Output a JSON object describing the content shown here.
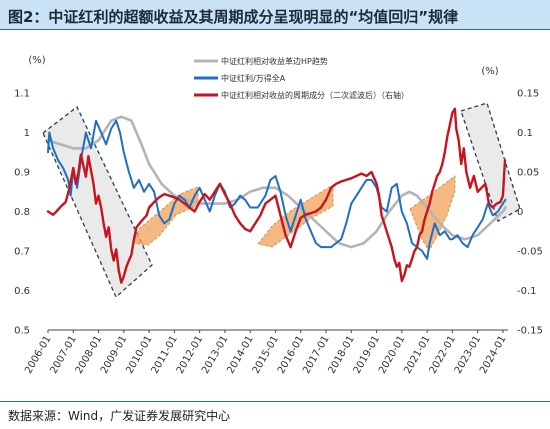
{
  "title": "图2：中证红利的超额收益及其周期成分呈现明显的“均值回归”规律",
  "source": "数据来源：Wind，广发证券发展研究中心",
  "chart_data": {
    "type": "line",
    "left_axis": {
      "unit": "(%)",
      "ylim": [
        0.5,
        1.1
      ],
      "ticks": [
        "1.1",
        "1",
        "0.9",
        "0.8",
        "0.7",
        "0.6",
        "0.5"
      ]
    },
    "right_axis": {
      "unit": "(%)",
      "ylim": [
        -0.15,
        0.15
      ],
      "ticks": [
        "0.15",
        "0.1",
        "0.05",
        "0",
        "-0.05",
        "-0.1",
        "-0.15"
      ]
    },
    "x_ticks": [
      "2006-01",
      "2007-01",
      "2008-01",
      "2009-01",
      "2010-01",
      "2011-01",
      "2012-01",
      "2013-01",
      "2014-01",
      "2015-01",
      "2016-01",
      "2017-01",
      "2018-01",
      "2019-01",
      "2020-01",
      "2021-01",
      "2022-01",
      "2023-01",
      "2024-01"
    ],
    "xlim": [
      2006.0,
      2024.2
    ],
    "legend_position": "top",
    "series": [
      {
        "name": "中证红利相对收益革边HP趋势",
        "axis": "left",
        "color": "#b4b4b4",
        "points": [
          [
            2006.0,
            0.98
          ],
          [
            2006.5,
            0.97
          ],
          [
            2007.0,
            0.96
          ],
          [
            2007.5,
            0.96
          ],
          [
            2008.0,
            0.98
          ],
          [
            2008.5,
            1.03
          ],
          [
            2008.9,
            1.04
          ],
          [
            2009.3,
            1.03
          ],
          [
            2009.7,
            0.97
          ],
          [
            2010.0,
            0.92
          ],
          [
            2010.5,
            0.87
          ],
          [
            2011.0,
            0.84
          ],
          [
            2011.5,
            0.83
          ],
          [
            2012.0,
            0.82
          ],
          [
            2012.5,
            0.82
          ],
          [
            2013.0,
            0.82
          ],
          [
            2013.5,
            0.83
          ],
          [
            2014.0,
            0.85
          ],
          [
            2014.5,
            0.86
          ],
          [
            2015.0,
            0.86
          ],
          [
            2015.5,
            0.84
          ],
          [
            2016.0,
            0.81
          ],
          [
            2016.5,
            0.78
          ],
          [
            2017.0,
            0.75
          ],
          [
            2017.5,
            0.72
          ],
          [
            2018.0,
            0.71
          ],
          [
            2018.5,
            0.72
          ],
          [
            2019.0,
            0.75
          ],
          [
            2019.5,
            0.8
          ],
          [
            2020.0,
            0.84
          ],
          [
            2020.3,
            0.85
          ],
          [
            2020.6,
            0.84
          ],
          [
            2021.0,
            0.81
          ],
          [
            2021.5,
            0.77
          ],
          [
            2022.0,
            0.74
          ],
          [
            2022.5,
            0.73
          ],
          [
            2023.0,
            0.74
          ],
          [
            2023.5,
            0.77
          ],
          [
            2024.0,
            0.8
          ],
          [
            2024.1,
            0.81
          ]
        ]
      },
      {
        "name": "中证红利/万得全A",
        "axis": "left",
        "color": "#1f6fc5",
        "points": [
          [
            2006.0,
            0.95
          ],
          [
            2006.05,
            1.0
          ],
          [
            2006.2,
            0.96
          ],
          [
            2006.4,
            0.93
          ],
          [
            2006.6,
            0.91
          ],
          [
            2006.8,
            0.88
          ],
          [
            2006.9,
            0.84
          ],
          [
            2007.0,
            0.91
          ],
          [
            2007.15,
            0.86
          ],
          [
            2007.3,
            0.93
          ],
          [
            2007.5,
            1.0
          ],
          [
            2007.7,
            0.96
          ],
          [
            2007.9,
            1.03
          ],
          [
            2008.1,
            1.0
          ],
          [
            2008.3,
            0.97
          ],
          [
            2008.5,
            1.01
          ],
          [
            2008.7,
            1.03
          ],
          [
            2008.85,
            1.0
          ],
          [
            2009.0,
            0.95
          ],
          [
            2009.2,
            0.9
          ],
          [
            2009.4,
            0.86
          ],
          [
            2009.6,
            0.88
          ],
          [
            2009.8,
            0.85
          ],
          [
            2010.0,
            0.87
          ],
          [
            2010.2,
            0.85
          ],
          [
            2010.4,
            0.79
          ],
          [
            2010.6,
            0.77
          ],
          [
            2010.8,
            0.78
          ],
          [
            2011.0,
            0.82
          ],
          [
            2011.2,
            0.84
          ],
          [
            2011.4,
            0.83
          ],
          [
            2011.6,
            0.81
          ],
          [
            2011.8,
            0.84
          ],
          [
            2012.0,
            0.86
          ],
          [
            2012.2,
            0.83
          ],
          [
            2012.4,
            0.8
          ],
          [
            2012.6,
            0.84
          ],
          [
            2012.8,
            0.87
          ],
          [
            2013.0,
            0.85
          ],
          [
            2013.2,
            0.81
          ],
          [
            2013.4,
            0.82
          ],
          [
            2013.6,
            0.84
          ],
          [
            2013.8,
            0.83
          ],
          [
            2014.0,
            0.81
          ],
          [
            2014.3,
            0.81
          ],
          [
            2014.6,
            0.84
          ],
          [
            2014.8,
            0.88
          ],
          [
            2015.0,
            0.89
          ],
          [
            2015.2,
            0.85
          ],
          [
            2015.4,
            0.79
          ],
          [
            2015.6,
            0.75
          ],
          [
            2015.8,
            0.79
          ],
          [
            2016.0,
            0.83
          ],
          [
            2016.2,
            0.78
          ],
          [
            2016.4,
            0.75
          ],
          [
            2016.6,
            0.72
          ],
          [
            2016.8,
            0.71
          ],
          [
            2017.0,
            0.71
          ],
          [
            2017.2,
            0.71
          ],
          [
            2017.4,
            0.72
          ],
          [
            2017.6,
            0.73
          ],
          [
            2017.8,
            0.77
          ],
          [
            2018.0,
            0.82
          ],
          [
            2018.2,
            0.84
          ],
          [
            2018.4,
            0.86
          ],
          [
            2018.6,
            0.88
          ],
          [
            2018.8,
            0.88
          ],
          [
            2019.0,
            0.86
          ],
          [
            2019.2,
            0.81
          ],
          [
            2019.4,
            0.8
          ],
          [
            2019.6,
            0.86
          ],
          [
            2019.8,
            0.87
          ],
          [
            2020.0,
            0.8
          ],
          [
            2020.2,
            0.77
          ],
          [
            2020.4,
            0.72
          ],
          [
            2020.6,
            0.71
          ],
          [
            2020.8,
            0.7
          ],
          [
            2021.0,
            0.68
          ],
          [
            2021.1,
            0.72
          ],
          [
            2021.3,
            0.77
          ],
          [
            2021.5,
            0.74
          ],
          [
            2021.7,
            0.75
          ],
          [
            2021.9,
            0.73
          ],
          [
            2022.0,
            0.73
          ],
          [
            2022.2,
            0.74
          ],
          [
            2022.4,
            0.72
          ],
          [
            2022.6,
            0.71
          ],
          [
            2022.8,
            0.74
          ],
          [
            2023.0,
            0.76
          ],
          [
            2023.2,
            0.78
          ],
          [
            2023.4,
            0.82
          ],
          [
            2023.6,
            0.79
          ],
          [
            2023.8,
            0.8
          ],
          [
            2024.0,
            0.82
          ],
          [
            2024.1,
            0.83
          ]
        ]
      },
      {
        "name": "中证红利相对收益的周期成分（二次滤波后）（右轴）",
        "axis": "right",
        "color": "#c8141e",
        "points": [
          [
            2006.0,
            0.0
          ],
          [
            2006.1,
            -0.002
          ],
          [
            2006.2,
            -0.004
          ],
          [
            2006.3,
            -0.001
          ],
          [
            2006.5,
            0.006
          ],
          [
            2006.7,
            0.012
          ],
          [
            2006.85,
            0.03
          ],
          [
            2007.0,
            0.055
          ],
          [
            2007.1,
            0.035
          ],
          [
            2007.2,
            0.048
          ],
          [
            2007.3,
            0.072
          ],
          [
            2007.4,
            0.058
          ],
          [
            2007.5,
            0.044
          ],
          [
            2007.6,
            0.07
          ],
          [
            2007.7,
            0.052
          ],
          [
            2007.8,
            0.035
          ],
          [
            2007.9,
            0.01
          ],
          [
            2008.0,
            0.02
          ],
          [
            2008.1,
            0.005
          ],
          [
            2008.2,
            -0.015
          ],
          [
            2008.3,
            -0.032
          ],
          [
            2008.4,
            -0.02
          ],
          [
            2008.5,
            -0.048
          ],
          [
            2008.6,
            -0.062
          ],
          [
            2008.7,
            -0.048
          ],
          [
            2008.8,
            -0.075
          ],
          [
            2008.9,
            -0.09
          ],
          [
            2009.0,
            -0.082
          ],
          [
            2009.1,
            -0.07
          ],
          [
            2009.2,
            -0.062
          ],
          [
            2009.3,
            -0.055
          ],
          [
            2009.4,
            -0.035
          ],
          [
            2009.5,
            -0.02
          ],
          [
            2009.7,
            -0.012
          ],
          [
            2009.9,
            -0.005
          ],
          [
            2010.0,
            0.005
          ],
          [
            2010.2,
            0.012
          ],
          [
            2010.4,
            0.018
          ],
          [
            2010.6,
            0.022
          ],
          [
            2010.8,
            0.02
          ],
          [
            2011.0,
            0.018
          ],
          [
            2011.2,
            0.015
          ],
          [
            2011.4,
            0.01
          ],
          [
            2011.6,
            0.005
          ],
          [
            2011.8,
            0.0
          ],
          [
            2012.0,
            0.012
          ],
          [
            2012.2,
            0.022
          ],
          [
            2012.4,
            0.015
          ],
          [
            2012.6,
            0.025
          ],
          [
            2012.8,
            0.035
          ],
          [
            2013.0,
            0.022
          ],
          [
            2013.2,
            0.01
          ],
          [
            2013.4,
            -0.005
          ],
          [
            2013.6,
            -0.015
          ],
          [
            2013.8,
            -0.022
          ],
          [
            2014.0,
            -0.025
          ],
          [
            2014.2,
            -0.015
          ],
          [
            2014.4,
            -0.005
          ],
          [
            2014.6,
            0.01
          ],
          [
            2014.8,
            0.015
          ],
          [
            2015.0,
            0.02
          ],
          [
            2015.2,
            -0.005
          ],
          [
            2015.4,
            -0.03
          ],
          [
            2015.6,
            -0.045
          ],
          [
            2015.8,
            -0.025
          ],
          [
            2016.0,
            -0.008
          ],
          [
            2016.2,
            -0.004
          ],
          [
            2016.4,
            -0.002
          ],
          [
            2016.6,
            0.0
          ],
          [
            2016.8,
            0.005
          ],
          [
            2017.0,
            0.015
          ],
          [
            2017.2,
            0.03
          ],
          [
            2017.4,
            0.035
          ],
          [
            2017.6,
            0.038
          ],
          [
            2017.8,
            0.04
          ],
          [
            2018.0,
            0.042
          ],
          [
            2018.2,
            0.045
          ],
          [
            2018.4,
            0.048
          ],
          [
            2018.6,
            0.045
          ],
          [
            2018.8,
            0.05
          ],
          [
            2019.0,
            0.035
          ],
          [
            2019.1,
            0.02
          ],
          [
            2019.2,
            -0.005
          ],
          [
            2019.3,
            -0.015
          ],
          [
            2019.4,
            -0.025
          ],
          [
            2019.5,
            -0.035
          ],
          [
            2019.6,
            -0.045
          ],
          [
            2019.7,
            -0.06
          ],
          [
            2019.8,
            -0.07
          ],
          [
            2019.9,
            -0.065
          ],
          [
            2020.0,
            -0.088
          ],
          [
            2020.1,
            -0.08
          ],
          [
            2020.2,
            -0.068
          ],
          [
            2020.3,
            -0.07
          ],
          [
            2020.4,
            -0.06
          ],
          [
            2020.5,
            -0.05
          ],
          [
            2020.6,
            -0.045
          ],
          [
            2020.7,
            -0.03
          ],
          [
            2020.8,
            -0.025
          ],
          [
            2020.9,
            -0.01
          ],
          [
            2021.0,
            0.0
          ],
          [
            2021.1,
            0.01
          ],
          [
            2021.2,
            0.025
          ],
          [
            2021.3,
            0.035
          ],
          [
            2021.4,
            0.045
          ],
          [
            2021.5,
            0.05
          ],
          [
            2021.6,
            0.06
          ],
          [
            2021.7,
            0.075
          ],
          [
            2021.8,
            0.095
          ],
          [
            2021.9,
            0.11
          ],
          [
            2022.0,
            0.125
          ],
          [
            2022.1,
            0.13
          ],
          [
            2022.15,
            0.105
          ],
          [
            2022.25,
            0.09
          ],
          [
            2022.35,
            0.06
          ],
          [
            2022.45,
            0.08
          ],
          [
            2022.55,
            0.05
          ],
          [
            2022.7,
            0.03
          ],
          [
            2022.85,
            0.045
          ],
          [
            2023.0,
            0.025
          ],
          [
            2023.15,
            0.03
          ],
          [
            2023.3,
            0.035
          ],
          [
            2023.45,
            0.01
          ],
          [
            2023.6,
            0.005
          ],
          [
            2023.75,
            0.01
          ],
          [
            2023.9,
            0.012
          ],
          [
            2024.0,
            0.02
          ],
          [
            2024.08,
            0.065
          ]
        ]
      }
    ]
  }
}
